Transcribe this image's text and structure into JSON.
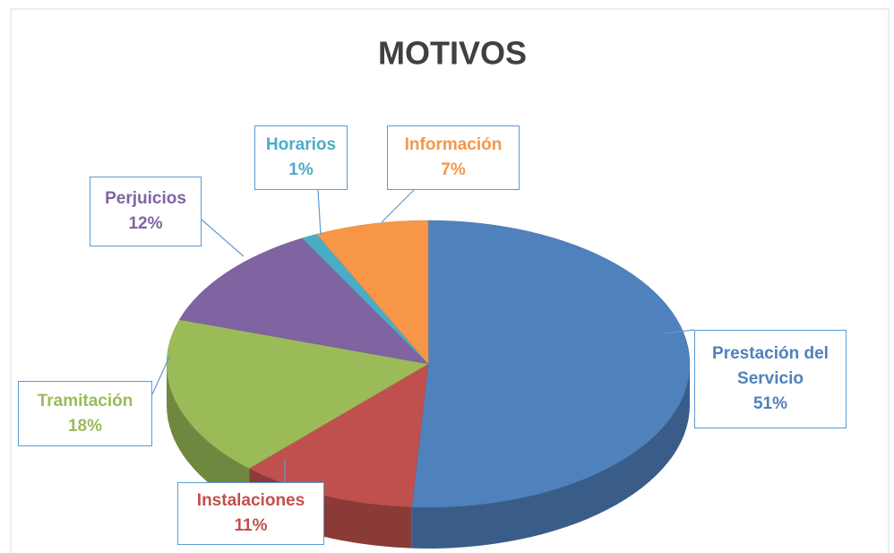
{
  "chart_data": {
    "type": "pie",
    "title": "MOTIVOS",
    "categories": [
      "Prestación del Servicio",
      "Instalaciones",
      "Tramitación",
      "Perjuicios",
      "Horarios",
      "Información"
    ],
    "values": [
      51,
      11,
      18,
      12,
      1,
      7
    ],
    "value_labels": [
      "51%",
      "11%",
      "18%",
      "12%",
      "1%",
      "7%"
    ],
    "colors": [
      "#4f81bd",
      "#c0504d",
      "#9bbb59",
      "#8064a2",
      "#4bacc6",
      "#f79646"
    ]
  }
}
